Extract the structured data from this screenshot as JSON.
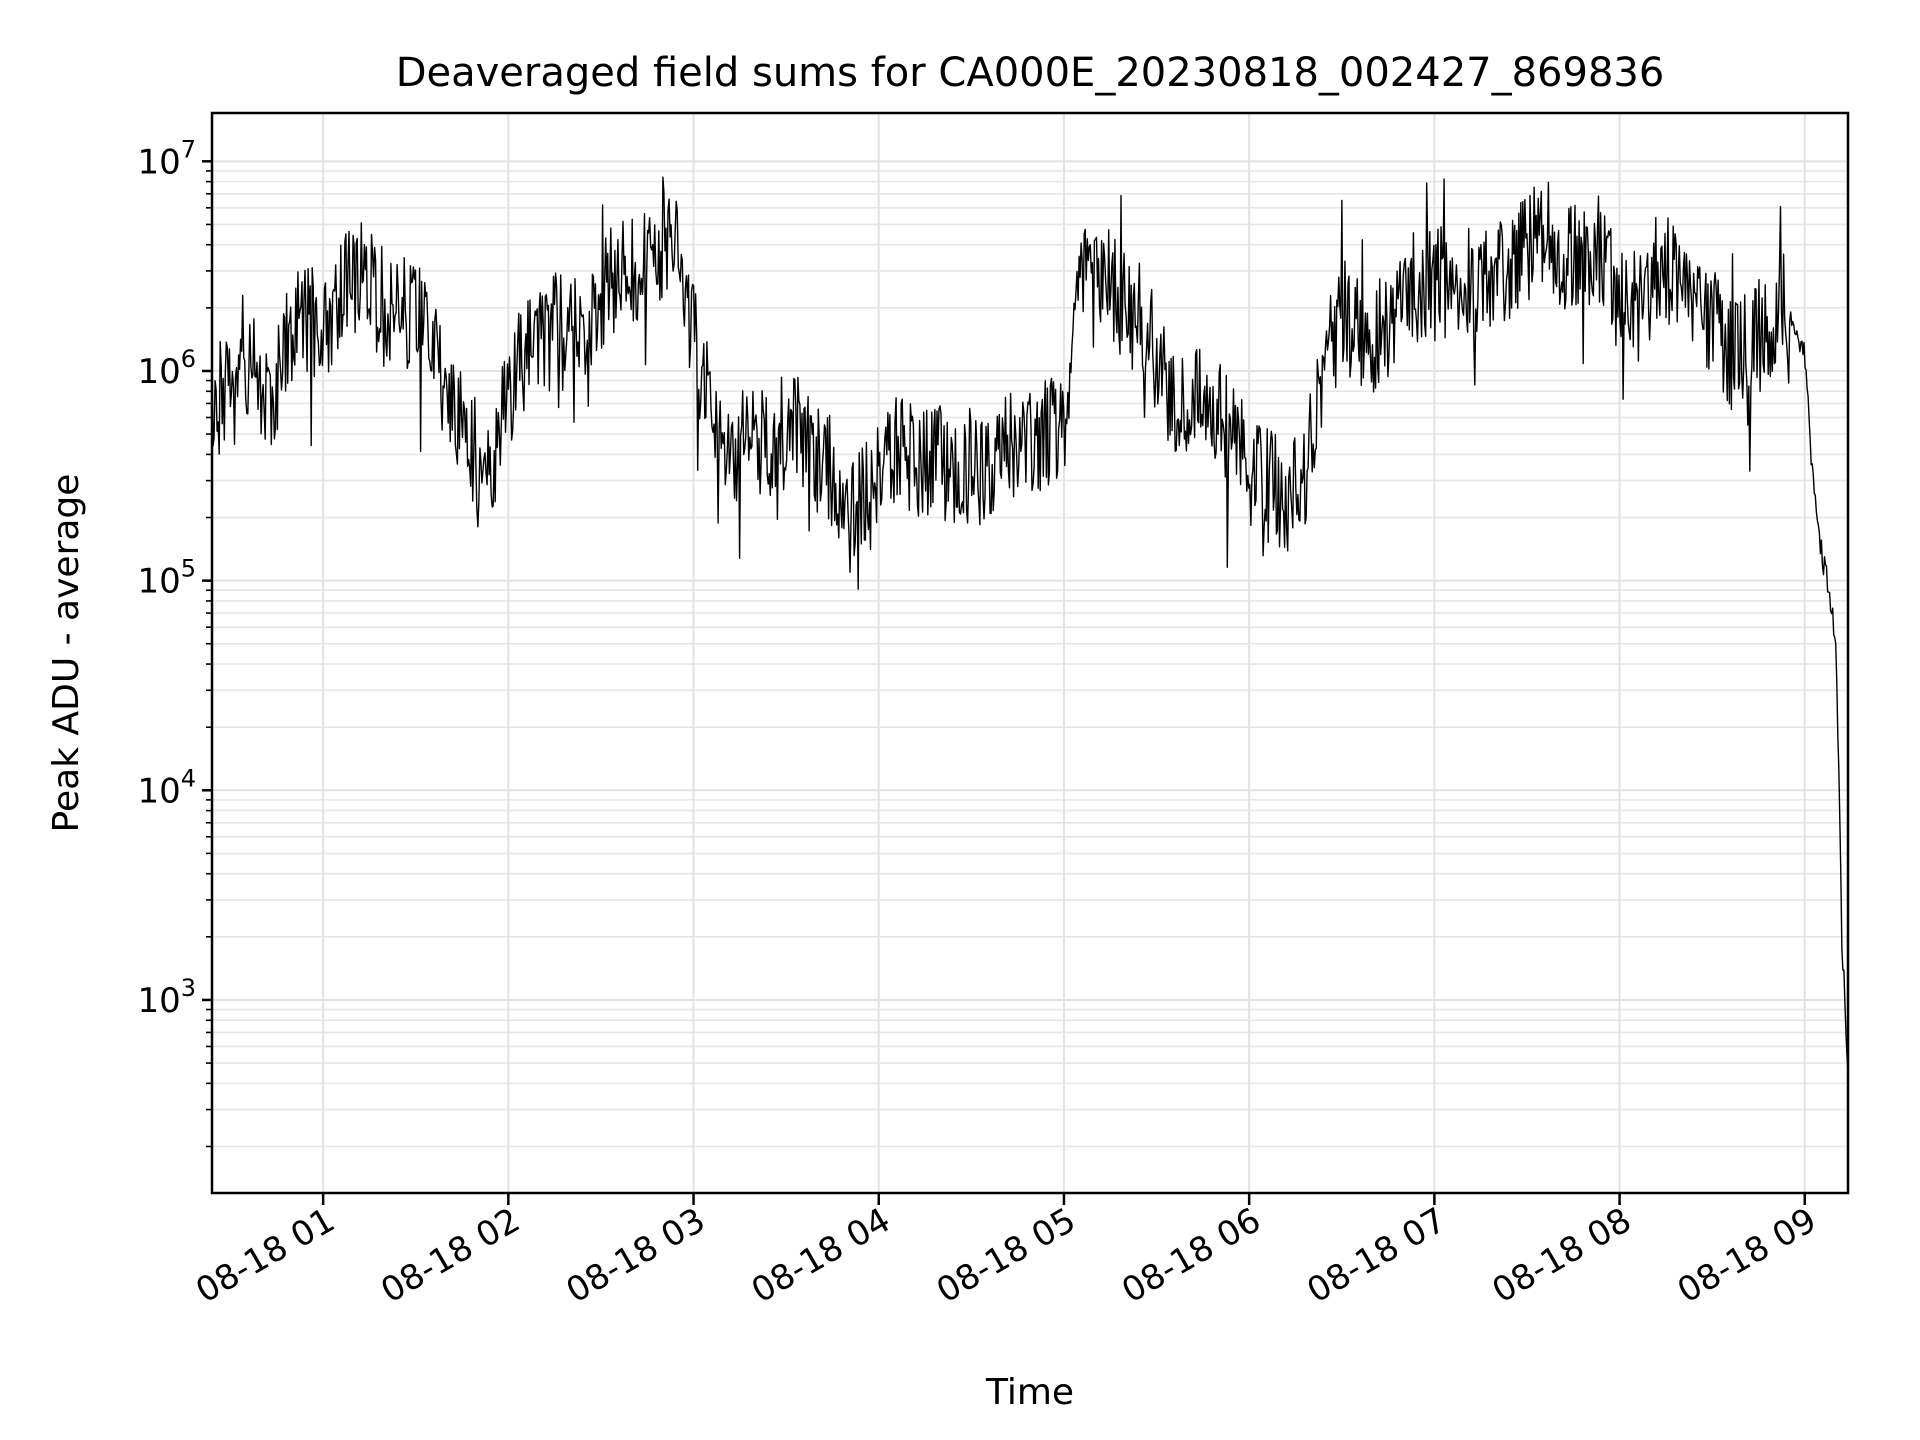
{
  "chart_data": {
    "type": "line",
    "title": "Deaveraged field sums for CA000E_20230818_002427_869836",
    "xlabel": "Time",
    "ylabel": "Peak ADU - average",
    "yscale": "log",
    "ylim": [
      120,
      17000000
    ],
    "xlim": [
      "2023-08-18 00:24",
      "2023-08-18 09:14"
    ],
    "grid": true,
    "x_tick_labels": [
      "08-18 01",
      "08-18 02",
      "08-18 03",
      "08-18 04",
      "08-18 05",
      "08-18 06",
      "08-18 07",
      "08-18 08",
      "08-18 09"
    ],
    "y_tick_labels": [
      {
        "base": "10",
        "exp": "3"
      },
      {
        "base": "10",
        "exp": "4"
      },
      {
        "base": "10",
        "exp": "5"
      },
      {
        "base": "10",
        "exp": "6"
      },
      {
        "base": "10",
        "exp": "7"
      }
    ],
    "series": [
      {
        "color": "#000000",
        "x": [
          "00:24",
          "00:30",
          "00:36",
          "00:42",
          "00:48",
          "00:54",
          "01:00",
          "01:06",
          "01:12",
          "01:18",
          "01:24",
          "01:30",
          "01:36",
          "01:42",
          "01:48",
          "01:54",
          "02:00",
          "02:06",
          "02:12",
          "02:18",
          "02:24",
          "02:30",
          "02:36",
          "02:42",
          "02:48",
          "02:54",
          "03:00",
          "03:06",
          "03:12",
          "03:18",
          "03:24",
          "03:30",
          "03:36",
          "03:42",
          "03:48",
          "03:54",
          "04:00",
          "04:06",
          "04:12",
          "04:18",
          "04:24",
          "04:30",
          "04:36",
          "04:42",
          "04:48",
          "04:54",
          "05:00",
          "05:06",
          "05:12",
          "05:18",
          "05:24",
          "05:30",
          "05:36",
          "05:42",
          "05:48",
          "05:54",
          "06:00",
          "06:06",
          "06:12",
          "06:18",
          "06:24",
          "06:30",
          "06:36",
          "06:42",
          "06:48",
          "06:54",
          "07:00",
          "07:06",
          "07:12",
          "07:18",
          "07:24",
          "07:30",
          "07:36",
          "07:42",
          "07:48",
          "07:54",
          "08:00",
          "08:06",
          "08:12",
          "08:18",
          "08:24",
          "08:30",
          "08:36",
          "08:42",
          "08:48",
          "08:54",
          "09:00",
          "09:03",
          "09:06",
          "09:08",
          "09:10",
          "09:11",
          "09:12",
          "09:13",
          "09:14"
        ],
        "y": [
          800000,
          750000,
          1100000,
          700000,
          1300000,
          1800000,
          1600000,
          2500000,
          3000000,
          2200000,
          1800000,
          2000000,
          1200000,
          600000,
          450000,
          300000,
          800000,
          1200000,
          1500000,
          1800000,
          1600000,
          2200000,
          3000000,
          3200000,
          4000000,
          4500000,
          1500000,
          600000,
          350000,
          500000,
          400000,
          600000,
          450000,
          350000,
          250000,
          220000,
          300000,
          450000,
          350000,
          400000,
          330000,
          350000,
          300000,
          500000,
          400000,
          500000,
          600000,
          2500000,
          2800000,
          2200000,
          1800000,
          1200000,
          700000,
          750000,
          700000,
          500000,
          350000,
          280000,
          250000,
          300000,
          900000,
          2000000,
          1500000,
          1500000,
          2000000,
          2600000,
          2500000,
          2800000,
          2500000,
          2800000,
          3000000,
          4000000,
          4500000,
          3500000,
          4000000,
          3600000,
          2200000,
          2000000,
          3000000,
          3200000,
          2000000,
          1800000,
          1200000,
          1400000,
          1500000,
          2000000,
          1200000,
          250000,
          120000,
          90000,
          50000,
          12000,
          2000,
          1000,
          400
        ]
      }
    ]
  }
}
